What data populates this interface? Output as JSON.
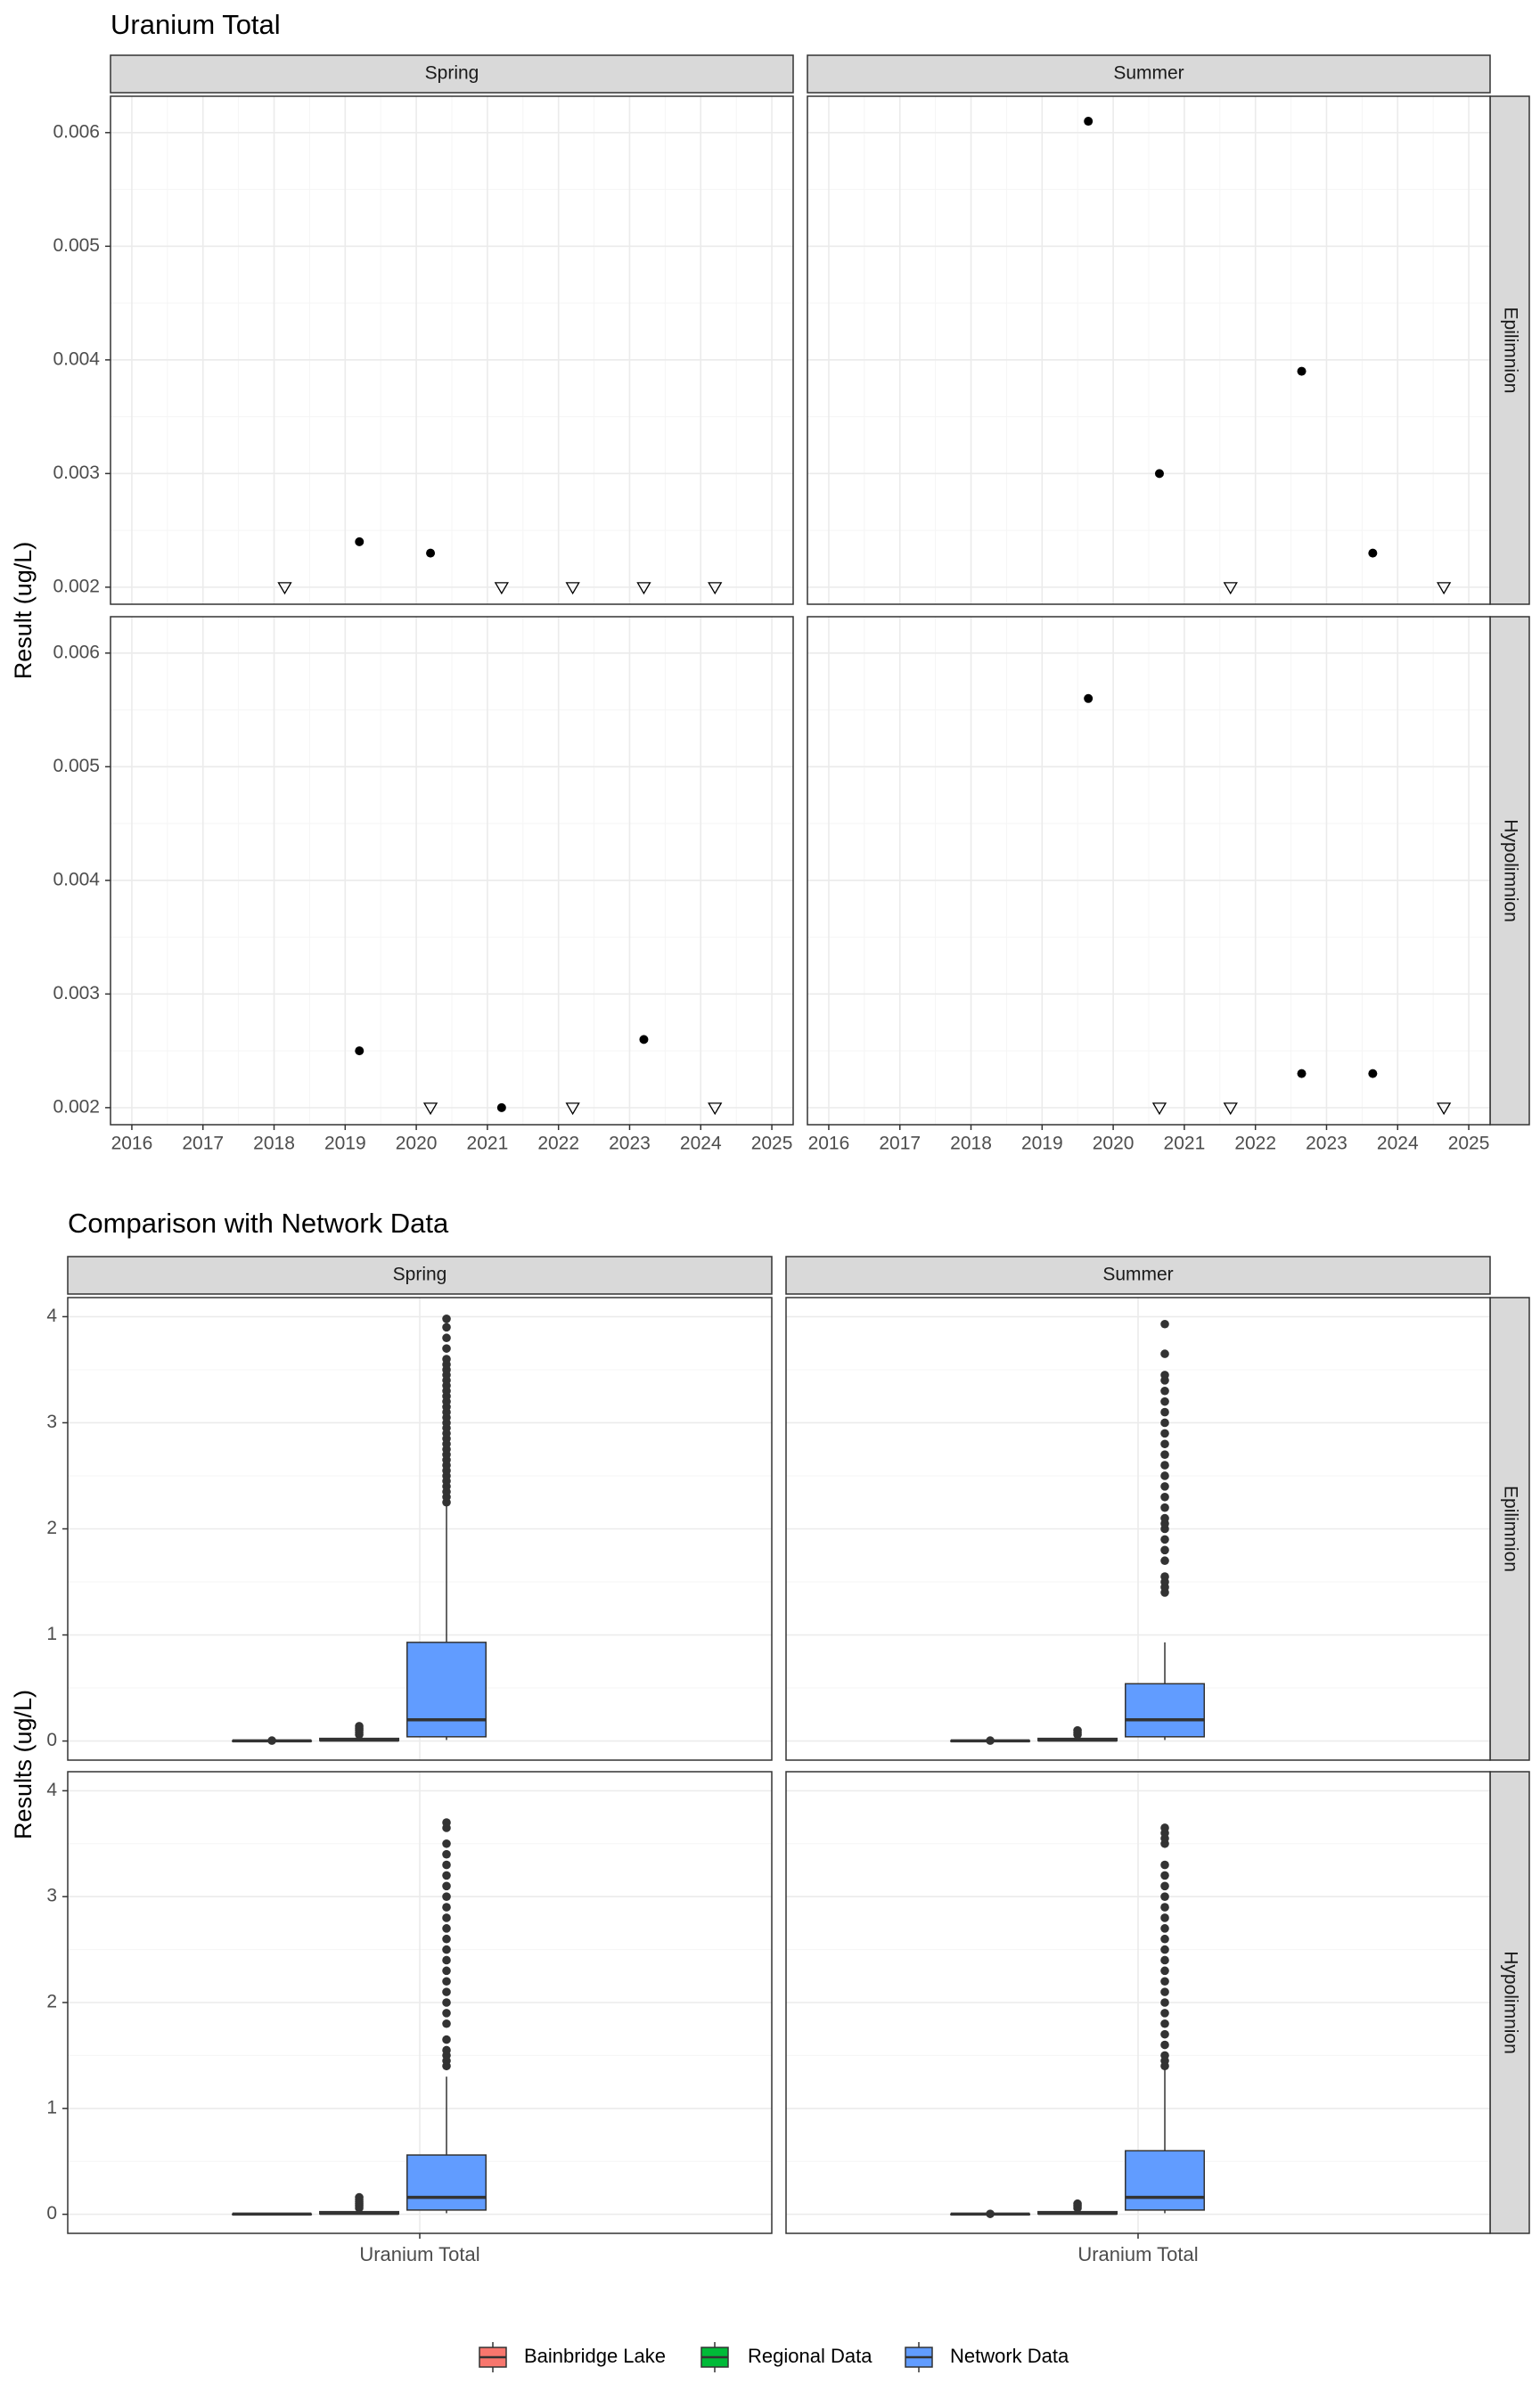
{
  "chart_data": [
    {
      "type": "scatter",
      "title": "Uranium Total",
      "ylabel": "Result (ug/L)",
      "xlabel": "",
      "x_ticks": [
        "2016",
        "2017",
        "2018",
        "2019",
        "2020",
        "2021",
        "2022",
        "2023",
        "2024",
        "2025"
      ],
      "xlim": [
        2015.7,
        2025.3
      ],
      "ylim": [
        0.00185,
        0.00632
      ],
      "y_ticks": [
        0.002,
        0.003,
        0.004,
        0.005,
        0.006
      ],
      "y_tick_labels": [
        "0.002",
        "0.003",
        "0.004",
        "0.005",
        "0.006"
      ],
      "columns": [
        "Spring",
        "Summer"
      ],
      "rows": [
        "Epilimnion",
        "Hypolimnion"
      ],
      "grid": true,
      "marker_legend": {
        "detected": "filled circle",
        "below_detection_limit": "open downward triangle"
      },
      "panels": [
        {
          "column": "Spring",
          "row": "Epilimnion",
          "points": [
            {
              "x": 2018.15,
              "y": 0.002,
              "below_detection": true
            },
            {
              "x": 2019.2,
              "y": 0.0024,
              "below_detection": false
            },
            {
              "x": 2020.2,
              "y": 0.0023,
              "below_detection": false
            },
            {
              "x": 2021.2,
              "y": 0.002,
              "below_detection": true
            },
            {
              "x": 2022.2,
              "y": 0.002,
              "below_detection": true
            },
            {
              "x": 2023.2,
              "y": 0.002,
              "below_detection": true
            },
            {
              "x": 2024.2,
              "y": 0.002,
              "below_detection": true
            }
          ]
        },
        {
          "column": "Summer",
          "row": "Epilimnion",
          "points": [
            {
              "x": 2019.65,
              "y": 0.0061,
              "below_detection": false
            },
            {
              "x": 2020.65,
              "y": 0.003,
              "below_detection": false
            },
            {
              "x": 2021.65,
              "y": 0.002,
              "below_detection": true
            },
            {
              "x": 2022.65,
              "y": 0.0039,
              "below_detection": false
            },
            {
              "x": 2023.65,
              "y": 0.0023,
              "below_detection": false
            },
            {
              "x": 2024.65,
              "y": 0.002,
              "below_detection": true
            }
          ]
        },
        {
          "column": "Spring",
          "row": "Hypolimnion",
          "points": [
            {
              "x": 2019.2,
              "y": 0.0025,
              "below_detection": false
            },
            {
              "x": 2020.2,
              "y": 0.002,
              "below_detection": true
            },
            {
              "x": 2021.2,
              "y": 0.002,
              "below_detection": false
            },
            {
              "x": 2022.2,
              "y": 0.002,
              "below_detection": true
            },
            {
              "x": 2023.2,
              "y": 0.0026,
              "below_detection": false
            },
            {
              "x": 2024.2,
              "y": 0.002,
              "below_detection": true
            }
          ]
        },
        {
          "column": "Summer",
          "row": "Hypolimnion",
          "points": [
            {
              "x": 2019.65,
              "y": 0.0056,
              "below_detection": false
            },
            {
              "x": 2020.65,
              "y": 0.002,
              "below_detection": true
            },
            {
              "x": 2021.65,
              "y": 0.002,
              "below_detection": true
            },
            {
              "x": 2022.65,
              "y": 0.0023,
              "below_detection": false
            },
            {
              "x": 2023.65,
              "y": 0.0023,
              "below_detection": false
            },
            {
              "x": 2024.65,
              "y": 0.002,
              "below_detection": true
            }
          ]
        }
      ]
    },
    {
      "type": "box",
      "title": "Comparison with Network Data",
      "ylabel": "Results (ug/L)",
      "xlabel": "",
      "categories": [
        "Uranium Total"
      ],
      "ylim": [
        -0.18,
        4.18
      ],
      "y_ticks": [
        0,
        1,
        2,
        3,
        4
      ],
      "y_tick_labels": [
        "0",
        "1",
        "2",
        "3",
        "4"
      ],
      "columns": [
        "Spring",
        "Summer"
      ],
      "rows": [
        "Epilimnion",
        "Hypolimnion"
      ],
      "grid": true,
      "legend": {
        "position": "bottom",
        "entries": [
          {
            "name": "Bainbridge Lake",
            "color": "#F8766D"
          },
          {
            "name": "Regional Data",
            "color": "#00BA38"
          },
          {
            "name": "Network Data",
            "color": "#619CFF"
          }
        ]
      },
      "panels": [
        {
          "column": "Spring",
          "row": "Epilimnion",
          "boxes": [
            {
              "group": "Bainbridge Lake",
              "min": 0.002,
              "q1": 0.002,
              "median": 0.002,
              "q3": 0.002,
              "max": 0.002,
              "outliers": [
                0.004
              ]
            },
            {
              "group": "Regional Data",
              "min": 0.0,
              "q1": 0.004,
              "median": 0.008,
              "q3": 0.025,
              "max": 0.05,
              "outliers": [
                0.06,
                0.08,
                0.1,
                0.12,
                0.14
              ]
            },
            {
              "group": "Network Data",
              "min": 0.01,
              "q1": 0.04,
              "median": 0.2,
              "q3": 0.93,
              "max": 2.25,
              "outliers": [
                2.25,
                2.3,
                2.35,
                2.4,
                2.45,
                2.5,
                2.55,
                2.6,
                2.65,
                2.7,
                2.75,
                2.8,
                2.85,
                2.9,
                2.95,
                3.0,
                3.05,
                3.1,
                3.15,
                3.2,
                3.25,
                3.3,
                3.35,
                3.4,
                3.45,
                3.5,
                3.55,
                3.6,
                3.7,
                3.8,
                3.9,
                3.98
              ]
            }
          ]
        },
        {
          "column": "Summer",
          "row": "Epilimnion",
          "boxes": [
            {
              "group": "Bainbridge Lake",
              "min": 0.002,
              "q1": 0.002,
              "median": 0.002,
              "q3": 0.002,
              "max": 0.002,
              "outliers": [
                0.004
              ]
            },
            {
              "group": "Regional Data",
              "min": 0.0,
              "q1": 0.004,
              "median": 0.008,
              "q3": 0.025,
              "max": 0.05,
              "outliers": [
                0.06,
                0.08,
                0.1
              ]
            },
            {
              "group": "Network Data",
              "min": 0.01,
              "q1": 0.04,
              "median": 0.2,
              "q3": 0.54,
              "max": 0.93,
              "outliers": [
                1.4,
                1.45,
                1.5,
                1.55,
                1.7,
                1.8,
                1.9,
                2.0,
                2.05,
                2.1,
                2.2,
                2.3,
                2.4,
                2.5,
                2.6,
                2.7,
                2.8,
                2.9,
                3.0,
                3.1,
                3.2,
                3.3,
                3.4,
                3.45,
                3.65,
                3.93
              ]
            }
          ]
        },
        {
          "column": "Spring",
          "row": "Hypolimnion",
          "boxes": [
            {
              "group": "Bainbridge Lake",
              "min": 0.002,
              "q1": 0.002,
              "median": 0.002,
              "q3": 0.002,
              "max": 0.002,
              "outliers": []
            },
            {
              "group": "Regional Data",
              "min": 0.0,
              "q1": 0.004,
              "median": 0.008,
              "q3": 0.025,
              "max": 0.05,
              "outliers": [
                0.06,
                0.08,
                0.1,
                0.12,
                0.14,
                0.16
              ]
            },
            {
              "group": "Network Data",
              "min": 0.01,
              "q1": 0.04,
              "median": 0.16,
              "q3": 0.56,
              "max": 1.3,
              "outliers": [
                1.4,
                1.45,
                1.5,
                1.55,
                1.65,
                1.8,
                1.9,
                2.0,
                2.1,
                2.2,
                2.3,
                2.4,
                2.5,
                2.6,
                2.7,
                2.8,
                2.9,
                3.0,
                3.1,
                3.2,
                3.3,
                3.4,
                3.5,
                3.65,
                3.7
              ]
            }
          ]
        },
        {
          "column": "Summer",
          "row": "Hypolimnion",
          "boxes": [
            {
              "group": "Bainbridge Lake",
              "min": 0.002,
              "q1": 0.002,
              "median": 0.002,
              "q3": 0.002,
              "max": 0.002,
              "outliers": [
                0.004
              ]
            },
            {
              "group": "Regional Data",
              "min": 0.0,
              "q1": 0.004,
              "median": 0.008,
              "q3": 0.025,
              "max": 0.05,
              "outliers": [
                0.06,
                0.08,
                0.1
              ]
            },
            {
              "group": "Network Data",
              "min": 0.01,
              "q1": 0.04,
              "median": 0.16,
              "q3": 0.6,
              "max": 1.4,
              "outliers": [
                1.4,
                1.45,
                1.5,
                1.6,
                1.7,
                1.8,
                1.9,
                2.0,
                2.1,
                2.2,
                2.3,
                2.4,
                2.5,
                2.6,
                2.7,
                2.8,
                2.9,
                3.0,
                3.1,
                3.2,
                3.3,
                3.5,
                3.55,
                3.6,
                3.65
              ]
            }
          ]
        }
      ]
    }
  ],
  "colors": {
    "strip_fill": "#D9D9D9",
    "panel_border": "#333333",
    "grid_major": "#EBEBEB",
    "grid_minor": "#F5F5F5",
    "box_outline": "#333333"
  }
}
